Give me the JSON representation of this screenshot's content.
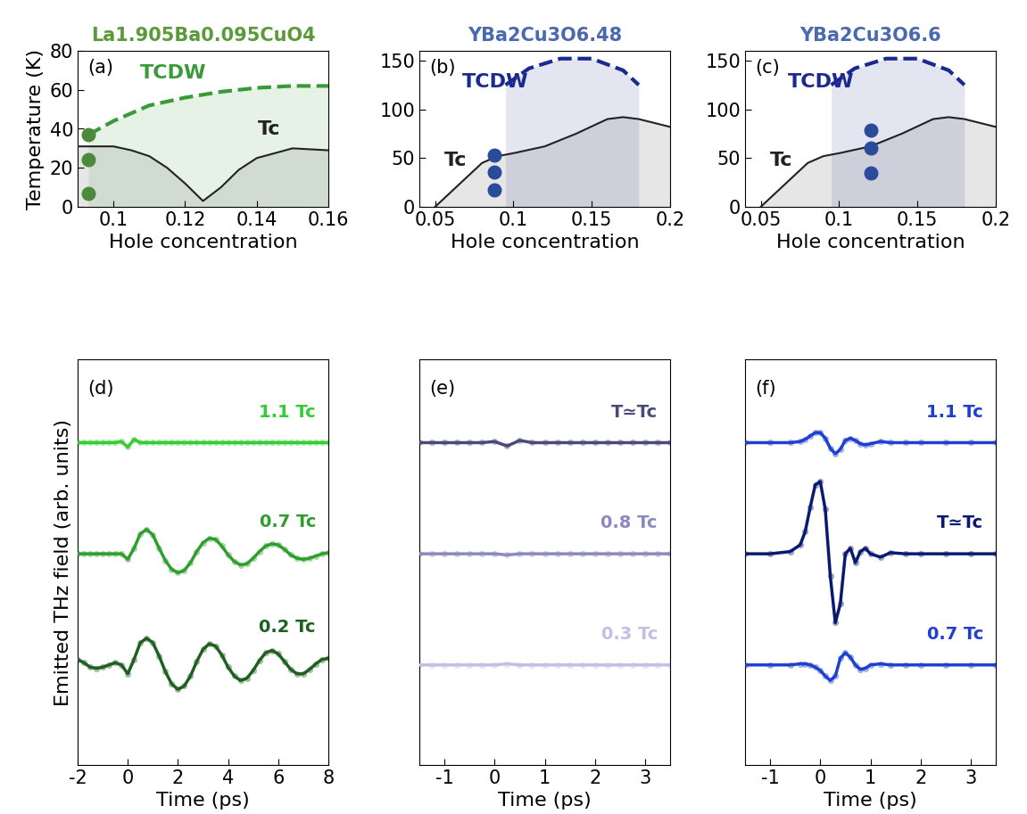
{
  "chart_data": [
    {
      "type": "line",
      "title": "La1.905Ba0.095CuO4",
      "color": "#5a9a3a",
      "panel_label": "(a)",
      "x_label": "Hole concentration",
      "y_label": "Temperature (K)",
      "xlim": [
        0.09,
        0.16
      ],
      "ylim": [
        0,
        80
      ],
      "xticks": [
        0.1,
        0.12,
        0.14,
        0.16
      ],
      "yticks": [
        0,
        20,
        40,
        60,
        80
      ],
      "series": [
        {
          "name": "Tc",
          "color": "#222222",
          "line_style": "solid",
          "x": [
            0.09,
            0.1,
            0.105,
            0.11,
            0.115,
            0.12,
            0.125,
            0.13,
            0.135,
            0.14,
            0.15,
            0.16
          ],
          "values": [
            31,
            31,
            29,
            26,
            20,
            12,
            3,
            10,
            19,
            25,
            30,
            29
          ]
        },
        {
          "name": "TCDW",
          "color": "#3a9a3a",
          "line_style": "dashed",
          "x": [
            0.093,
            0.1,
            0.11,
            0.12,
            0.13,
            0.14,
            0.15,
            0.16
          ],
          "values": [
            37,
            44,
            52,
            56,
            59,
            61,
            62,
            62
          ]
        },
        {
          "type": "scatter",
          "color": "#4a8a3a",
          "x": [
            0.093,
            0.093,
            0.093
          ],
          "values": [
            37,
            24,
            7
          ]
        }
      ]
    },
    {
      "type": "line",
      "title": "YBa2Cu3O6.48",
      "color": "#4a6ab0",
      "panel_label": "(b)",
      "x_label": "Hole concentration",
      "xlim": [
        0.04,
        0.2
      ],
      "ylim": [
        0,
        160
      ],
      "xticks": [
        0.05,
        0.1,
        0.15,
        0.2
      ],
      "yticks": [
        0,
        50,
        100,
        150
      ],
      "series": [
        {
          "name": "Tc",
          "color": "#222222",
          "line_style": "solid",
          "x": [
            0.05,
            0.06,
            0.07,
            0.08,
            0.09,
            0.1,
            0.12,
            0.14,
            0.16,
            0.17,
            0.18,
            0.2
          ],
          "values": [
            0,
            15,
            30,
            45,
            52,
            55,
            62,
            75,
            90,
            92,
            90,
            82
          ]
        },
        {
          "name": "TCDW",
          "color": "#1a2a90",
          "line_style": "dashed",
          "x": [
            0.095,
            0.11,
            0.13,
            0.15,
            0.17,
            0.18
          ],
          "values": [
            125,
            142,
            152,
            152,
            140,
            125
          ]
        },
        {
          "type": "scatter",
          "color": "#2a4a9a",
          "x": [
            0.088,
            0.088,
            0.088
          ],
          "values": [
            53,
            36,
            17
          ]
        }
      ]
    },
    {
      "type": "line",
      "title": "YBa2Cu3O6.6",
      "color": "#4a6ab0",
      "panel_label": "(c)",
      "x_label": "Hole concentration",
      "xlim": [
        0.04,
        0.2
      ],
      "ylim": [
        0,
        160
      ],
      "xticks": [
        0.05,
        0.1,
        0.15,
        0.2
      ],
      "yticks": [
        0,
        50,
        100,
        150
      ],
      "series": [
        {
          "name": "Tc",
          "color": "#222222",
          "line_style": "solid",
          "x": [
            0.05,
            0.06,
            0.07,
            0.08,
            0.09,
            0.1,
            0.12,
            0.14,
            0.16,
            0.17,
            0.18,
            0.2
          ],
          "values": [
            0,
            15,
            30,
            45,
            52,
            55,
            62,
            75,
            90,
            92,
            90,
            82
          ]
        },
        {
          "name": "TCDW",
          "color": "#1a2a90",
          "line_style": "dashed",
          "x": [
            0.095,
            0.11,
            0.13,
            0.15,
            0.17,
            0.18
          ],
          "values": [
            125,
            142,
            152,
            152,
            140,
            125
          ]
        },
        {
          "type": "scatter",
          "color": "#2a4a9a",
          "x": [
            0.12,
            0.12,
            0.12
          ],
          "values": [
            79,
            60,
            35
          ]
        }
      ]
    },
    {
      "type": "line",
      "panel_label": "(d)",
      "x_label": "Time (ps)",
      "y_label": "Emitted THz field (arb. units)",
      "tick_labels": "x",
      "xlim": [
        -2,
        8
      ],
      "ylim": [
        -2.9,
        0.75
      ],
      "xticks": [
        -2,
        0,
        2,
        4,
        6,
        8
      ],
      "x": [
        -2,
        -1.75,
        -1.5,
        -1.25,
        -1,
        -0.75,
        -0.5,
        -0.25,
        0,
        0.25,
        0.5,
        0.75,
        1,
        1.25,
        1.5,
        1.75,
        2,
        2.25,
        2.5,
        2.75,
        3,
        3.25,
        3.5,
        3.75,
        4,
        4.25,
        4.5,
        4.75,
        5,
        5.25,
        5.5,
        5.75,
        6,
        6.25,
        6.5,
        6.75,
        7,
        7.25,
        7.5,
        7.75,
        8
      ],
      "series": [
        {
          "name": "1.1 Tc",
          "color": "#33cc33",
          "values": [
            0,
            0,
            0,
            0,
            0,
            0,
            0,
            0.01,
            -0.04,
            0.03,
            0,
            0,
            0,
            0,
            0,
            0,
            0,
            0,
            0,
            0,
            0,
            0,
            0,
            0,
            0,
            0,
            0,
            0,
            0,
            0,
            0,
            0,
            0,
            0,
            0,
            0,
            0,
            0,
            0,
            0,
            0
          ]
        },
        {
          "name": "0.7 Tc",
          "color": "#2e9e2e",
          "values": [
            -1,
            -1,
            -1,
            -1,
            -1,
            -1,
            -1,
            -1,
            -1.05,
            -0.95,
            -0.82,
            -0.78,
            -0.83,
            -0.95,
            -1.06,
            -1.14,
            -1.17,
            -1.15,
            -1.08,
            -0.98,
            -0.9,
            -0.86,
            -0.87,
            -0.93,
            -1.01,
            -1.07,
            -1.1,
            -1.09,
            -1.04,
            -0.98,
            -0.93,
            -0.91,
            -0.92,
            -0.96,
            -1.01,
            -1.04,
            -1.05,
            -1.04,
            -1.02,
            -1.0,
            -0.99
          ]
        },
        {
          "name": "0.2 Tc",
          "color": "#1f5f1f",
          "values": [
            -1.95,
            -1.98,
            -2.02,
            -2.03,
            -2.02,
            -2.0,
            -1.98,
            -2.0,
            -2.08,
            -1.95,
            -1.8,
            -1.76,
            -1.8,
            -1.92,
            -2.06,
            -2.17,
            -2.22,
            -2.19,
            -2.1,
            -1.97,
            -1.86,
            -1.81,
            -1.83,
            -1.91,
            -2.02,
            -2.1,
            -2.14,
            -2.12,
            -2.05,
            -1.96,
            -1.89,
            -1.87,
            -1.9,
            -1.97,
            -2.04,
            -2.08,
            -2.08,
            -2.04,
            -1.99,
            -1.95,
            -1.94
          ]
        }
      ]
    },
    {
      "type": "line",
      "panel_label": "(e)",
      "x_label": "Time (ps)",
      "tick_labels": "x",
      "xlim": [
        -1.5,
        3.5
      ],
      "ylim": [
        -2.9,
        0.75
      ],
      "xticks": [
        -1,
        0,
        1,
        2,
        3
      ],
      "x": [
        -1.5,
        -1.25,
        -1,
        -0.75,
        -0.5,
        -0.25,
        0,
        0.25,
        0.5,
        0.75,
        1,
        1.25,
        1.5,
        1.75,
        2,
        2.25,
        2.5,
        2.75,
        3,
        3.25,
        3.5
      ],
      "series": [
        {
          "name": "T≃Tc",
          "color": "#4a4a7a",
          "values": [
            0,
            0,
            0,
            0,
            0,
            0,
            0.01,
            -0.03,
            0.02,
            0,
            0,
            0,
            0,
            0,
            0,
            0,
            0,
            0,
            0,
            0,
            0
          ]
        },
        {
          "name": "0.8 Tc",
          "color": "#8a8ac0",
          "values": [
            -1,
            -1,
            -1,
            -1,
            -1,
            -1,
            -1,
            -1.01,
            -1,
            -1,
            -1,
            -1,
            -1,
            -1,
            -1,
            -1,
            -1,
            -1,
            -1,
            -1,
            -1
          ]
        },
        {
          "name": "0.3 Tc",
          "color": "#c0c0e6",
          "values": [
            -2,
            -2,
            -2,
            -2,
            -2,
            -2,
            -2,
            -1.99,
            -2,
            -2,
            -2,
            -2,
            -2,
            -2,
            -2,
            -2,
            -2,
            -2,
            -2,
            -2,
            -2
          ]
        }
      ]
    },
    {
      "type": "line",
      "panel_label": "(f)",
      "x_label": "Time (ps)",
      "tick_labels": "x",
      "xlim": [
        -1.5,
        3.5
      ],
      "ylim": [
        -2.9,
        0.75
      ],
      "xticks": [
        -1,
        0,
        1,
        2,
        3
      ],
      "x": [
        -1.5,
        -1.0,
        -0.6,
        -0.4,
        -0.3,
        -0.2,
        -0.1,
        0.0,
        0.1,
        0.2,
        0.3,
        0.4,
        0.5,
        0.6,
        0.7,
        0.8,
        0.9,
        1.0,
        1.2,
        1.4,
        1.7,
        2.0,
        2.5,
        3.0,
        3.5
      ],
      "series": [
        {
          "name": "1.1 Tc",
          "color": "#1f3fd0",
          "values": [
            0,
            0,
            0,
            0.01,
            0.03,
            0.06,
            0.09,
            0.09,
            0.04,
            -0.05,
            -0.1,
            -0.06,
            0.02,
            0.04,
            0.02,
            -0.01,
            -0.02,
            -0.01,
            0.01,
            0,
            0,
            0,
            0,
            0,
            0
          ]
        },
        {
          "name": "T≃Tc",
          "color": "#0a1a70",
          "values": [
            -1,
            -1,
            -0.98,
            -0.92,
            -0.8,
            -0.58,
            -0.38,
            -0.35,
            -0.6,
            -1.2,
            -1.62,
            -1.45,
            -1.0,
            -0.95,
            -1.08,
            -0.98,
            -0.95,
            -1.0,
            -1.03,
            -0.99,
            -1,
            -1,
            -1,
            -1,
            -1
          ]
        },
        {
          "name": "0.7 Tc",
          "color": "#1f3fd0",
          "values": [
            -2,
            -2,
            -2,
            -1.99,
            -1.99,
            -2.0,
            -2.02,
            -2.05,
            -2.1,
            -2.14,
            -2.1,
            -1.94,
            -1.89,
            -1.93,
            -2.0,
            -2.04,
            -2.03,
            -2.0,
            -1.99,
            -2.0,
            -2,
            -2,
            -2,
            -2,
            -2
          ]
        }
      ]
    }
  ]
}
